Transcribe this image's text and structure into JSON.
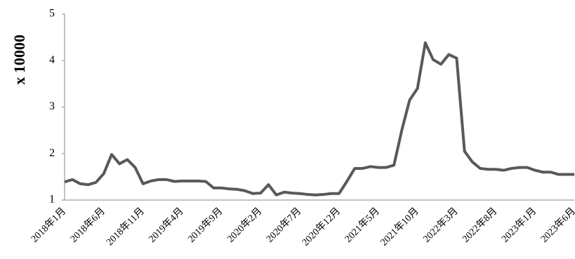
{
  "chart_data": {
    "type": "line",
    "ylabel": "x 10000",
    "categories": [
      "2018年1月",
      null,
      null,
      null,
      null,
      "2018年6月",
      null,
      null,
      null,
      null,
      "2018年11月",
      null,
      null,
      null,
      null,
      "2019年4月",
      null,
      null,
      null,
      null,
      "2019年9月",
      null,
      null,
      null,
      null,
      "2020年2月",
      null,
      null,
      null,
      null,
      "2020年7月",
      null,
      null,
      null,
      null,
      "2020年12月",
      null,
      null,
      null,
      null,
      "2021年5月",
      null,
      null,
      null,
      null,
      "2021年10月",
      null,
      null,
      null,
      null,
      "2022年3月",
      null,
      null,
      null,
      null,
      "2022年8月",
      null,
      null,
      null,
      null,
      "2023年1月",
      null,
      null,
      null,
      null,
      "2023年6月"
    ],
    "values": [
      1.39,
      1.44,
      1.35,
      1.33,
      1.38,
      1.57,
      1.98,
      1.78,
      1.87,
      1.7,
      1.35,
      1.41,
      1.44,
      1.44,
      1.4,
      1.41,
      1.41,
      1.41,
      1.4,
      1.26,
      1.26,
      1.24,
      1.23,
      1.2,
      1.14,
      1.15,
      1.33,
      1.11,
      1.17,
      1.15,
      1.14,
      1.12,
      1.11,
      1.12,
      1.14,
      1.14,
      1.4,
      1.68,
      1.68,
      1.72,
      1.7,
      1.7,
      1.75,
      2.5,
      3.15,
      3.4,
      4.38,
      4.02,
      3.92,
      4.13,
      4.05,
      2.05,
      1.82,
      1.68,
      1.66,
      1.66,
      1.64,
      1.68,
      1.7,
      1.7,
      1.64,
      1.6,
      1.6,
      1.55,
      1.55,
      1.55
    ],
    "color": "#595959",
    "ylim": [
      1,
      5
    ],
    "yticks": [
      1,
      2,
      3,
      4,
      5
    ],
    "grid": false
  }
}
